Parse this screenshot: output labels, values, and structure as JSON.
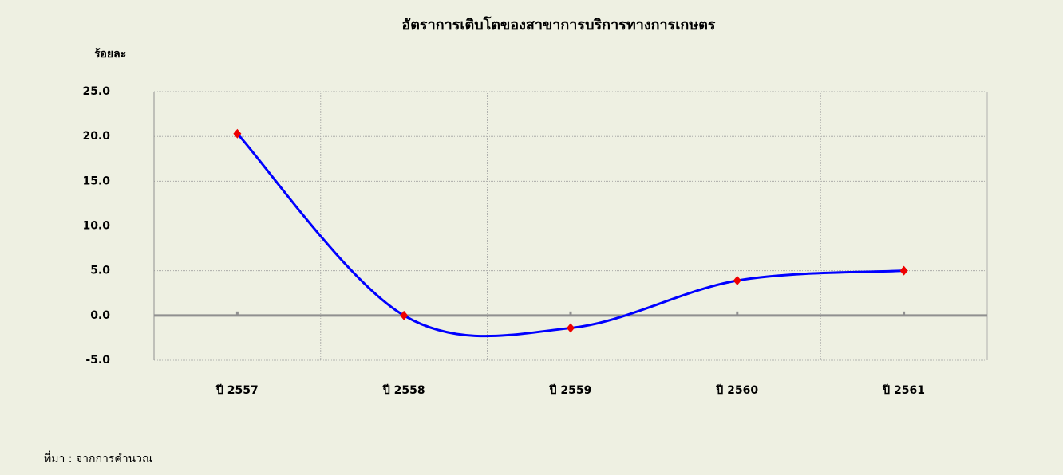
{
  "chart_data": {
    "type": "line",
    "title": "อัตราการเติบโตของสาขาการบริการทางการเกษตร",
    "y_label": "ร้อยละ",
    "source": "ที่มา : จากการคำนวณ",
    "categories": [
      "ปี 2557",
      "ปี 2558",
      "ปี 2559",
      "ปี 2560",
      "ปี 2561"
    ],
    "series": [
      {
        "name": "อัตราการเติบโต",
        "color": "#0000ff",
        "marker_color": "#ee0000",
        "values": [
          20.3,
          0.0,
          -1.4,
          3.9,
          5.0
        ]
      }
    ],
    "ylim": [
      -5,
      25
    ],
    "yticks": [
      {
        "value": -5,
        "label": "-5.0"
      },
      {
        "value": 0,
        "label": "0.0"
      },
      {
        "value": 5,
        "label": "5.0"
      },
      {
        "value": 10,
        "label": "10.0"
      },
      {
        "value": 15,
        "label": "15.0"
      },
      {
        "value": 20,
        "label": "20.0"
      },
      {
        "value": 25,
        "label": "25.0"
      }
    ],
    "grid": true,
    "smooth": true
  }
}
